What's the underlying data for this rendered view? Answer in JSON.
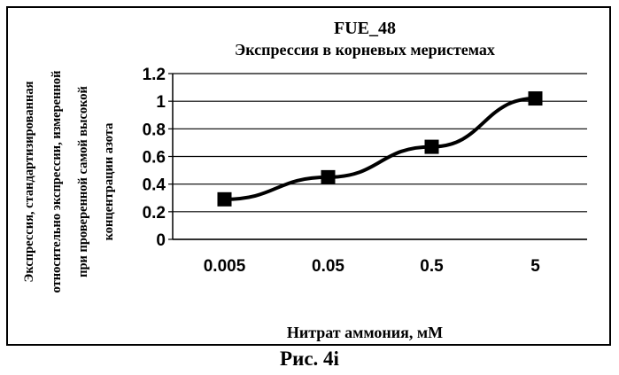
{
  "chart_data": {
    "type": "line",
    "title": "FUE_48",
    "subtitle": "Экспрессия в корневых меристемах",
    "xlabel": "Нитрат аммония, мМ",
    "ylabel_lines": [
      "Экспрессия, стандартизированная",
      "относительно экспрессии, измеренной",
      "при проверенной самой высокой",
      "концентрации азота"
    ],
    "categories": [
      "0.005",
      "0.05",
      "0.5",
      "5"
    ],
    "values": [
      0.29,
      0.45,
      0.67,
      1.02
    ],
    "ylim": [
      0,
      1.2
    ],
    "yticks": [
      0,
      0.2,
      0.4,
      0.6,
      0.8,
      1,
      1.2
    ],
    "ytick_labels": [
      "0",
      "0.2",
      "0.4",
      "0.6",
      "0.8",
      "1",
      "1.2"
    ],
    "grid": true,
    "marker": "square",
    "line_color": "#000000"
  },
  "caption": "Рис. 4i"
}
